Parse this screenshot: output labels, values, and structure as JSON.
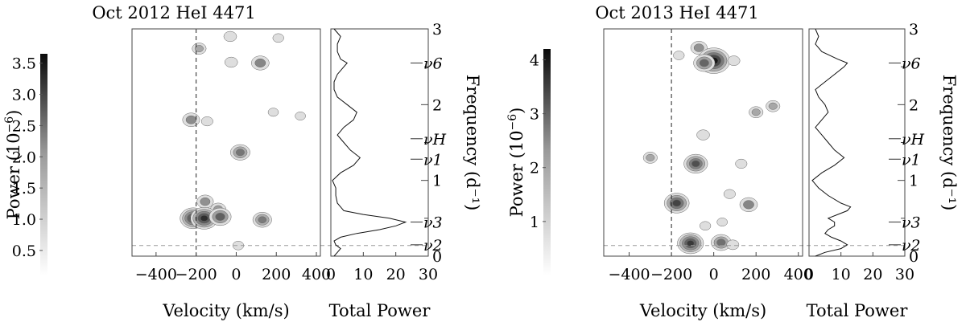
{
  "chart_data": [
    {
      "type": "heatmap",
      "title": "Oct 2012 HeI 4471",
      "xlabel": "Velocity (km/s)",
      "xlim": [
        -520,
        420
      ],
      "xticks": [
        -400,
        -200,
        0,
        200,
        400
      ],
      "ylabel_right": "Frequency (d⁻¹)",
      "ylim": [
        0,
        3
      ],
      "yticks": [
        0,
        1,
        2,
        3
      ],
      "dashed_velocity": -200,
      "dashed_frequency": 0.14,
      "colorbar": {
        "label_main": "Power (10",
        "label_exp": "−6",
        "label_close": ")",
        "range": [
          0.1,
          3.65
        ],
        "ticks": [
          "0.5",
          "1.0",
          "1.5",
          "2.0",
          "2.5",
          "3.0",
          "3.5"
        ]
      },
      "markers": [
        {
          "name": "ν6",
          "freq": 2.55
        },
        {
          "name": "νH",
          "freq": 1.55
        },
        {
          "name": "ν1",
          "freq": 1.28
        },
        {
          "name": "ν3",
          "freq": 0.45
        },
        {
          "name": "ν2",
          "freq": 0.15
        }
      ],
      "blobs": [
        {
          "v": -30,
          "f": 2.9,
          "p": 0.8
        },
        {
          "v": 210,
          "f": 2.88,
          "p": 0.5
        },
        {
          "v": -185,
          "f": 2.74,
          "p": 1.0
        },
        {
          "v": -25,
          "f": 2.56,
          "p": 0.8
        },
        {
          "v": 120,
          "f": 2.55,
          "p": 1.6
        },
        {
          "v": 185,
          "f": 1.9,
          "p": 0.4
        },
        {
          "v": 320,
          "f": 1.85,
          "p": 0.4
        },
        {
          "v": -225,
          "f": 1.8,
          "p": 1.5
        },
        {
          "v": -145,
          "f": 1.78,
          "p": 0.6
        },
        {
          "v": 20,
          "f": 1.37,
          "p": 1.9
        },
        {
          "v": -155,
          "f": 0.72,
          "p": 1.4
        },
        {
          "v": -90,
          "f": 0.62,
          "p": 1.2
        },
        {
          "v": -215,
          "f": 0.5,
          "p": 3.0
        },
        {
          "v": -160,
          "f": 0.5,
          "p": 3.2
        },
        {
          "v": -80,
          "f": 0.52,
          "p": 2.3
        },
        {
          "v": 130,
          "f": 0.48,
          "p": 1.8
        },
        {
          "v": 10,
          "f": 0.14,
          "p": 0.5
        }
      ],
      "total_power": {
        "xlabel": "Total Power",
        "xlim": [
          0,
          30
        ],
        "xticks": [
          0,
          10,
          20,
          30
        ],
        "freq": [
          0,
          0.05,
          0.1,
          0.15,
          0.2,
          0.25,
          0.3,
          0.35,
          0.4,
          0.45,
          0.5,
          0.55,
          0.6,
          0.7,
          0.8,
          0.9,
          1.0,
          1.1,
          1.2,
          1.3,
          1.4,
          1.5,
          1.6,
          1.7,
          1.8,
          1.9,
          2.0,
          2.1,
          2.2,
          2.3,
          2.4,
          2.5,
          2.55,
          2.6,
          2.7,
          2.8,
          2.9,
          3.0
        ],
        "power": [
          1,
          2,
          3,
          1.5,
          1,
          3,
          8,
          15,
          20,
          23,
          18,
          10,
          4,
          2,
          1.5,
          1.5,
          0.5,
          3,
          7,
          9,
          6,
          4,
          2,
          4,
          7,
          8,
          5,
          2,
          1,
          1,
          2,
          4,
          5,
          3,
          2,
          2,
          3,
          1
        ]
      }
    },
    {
      "type": "heatmap",
      "title": "Oct 2013 HeI 4471",
      "xlabel": "Velocity (km/s)",
      "xlim": [
        -520,
        420
      ],
      "xticks": [
        -400,
        -200,
        0,
        200,
        400
      ],
      "ylabel_right": "Frequency (d⁻¹)",
      "ylim": [
        0,
        3
      ],
      "yticks": [
        0,
        1,
        2,
        3
      ],
      "dashed_velocity": -200,
      "dashed_frequency": 0.14,
      "colorbar": {
        "label_main": "Power (10",
        "label_exp": "−6",
        "label_close": ")",
        "range": [
          0,
          4.2
        ],
        "ticks": [
          "1",
          "2",
          "3",
          "4"
        ]
      },
      "markers": [
        {
          "name": "ν6",
          "freq": 2.55
        },
        {
          "name": "νH",
          "freq": 1.55
        },
        {
          "name": "ν1",
          "freq": 1.28
        },
        {
          "name": "ν3",
          "freq": 0.45
        },
        {
          "name": "ν2",
          "freq": 0.15
        }
      ],
      "blobs": [
        {
          "v": -70,
          "f": 2.75,
          "p": 1.4
        },
        {
          "v": -165,
          "f": 2.65,
          "p": 0.5
        },
        {
          "v": 0,
          "f": 2.58,
          "p": 4.0
        },
        {
          "v": -45,
          "f": 2.55,
          "p": 2.2
        },
        {
          "v": 95,
          "f": 2.58,
          "p": 0.7
        },
        {
          "v": 280,
          "f": 1.98,
          "p": 1.0
        },
        {
          "v": 200,
          "f": 1.9,
          "p": 1.0
        },
        {
          "v": -50,
          "f": 1.6,
          "p": 0.8
        },
        {
          "v": -300,
          "f": 1.3,
          "p": 1.0
        },
        {
          "v": -85,
          "f": 1.22,
          "p": 2.6
        },
        {
          "v": 130,
          "f": 1.22,
          "p": 0.6
        },
        {
          "v": 75,
          "f": 0.82,
          "p": 0.6
        },
        {
          "v": -175,
          "f": 0.7,
          "p": 2.8
        },
        {
          "v": 165,
          "f": 0.68,
          "p": 1.6
        },
        {
          "v": -40,
          "f": 0.4,
          "p": 0.5
        },
        {
          "v": 40,
          "f": 0.45,
          "p": 0.4
        },
        {
          "v": -110,
          "f": 0.17,
          "p": 3.0
        },
        {
          "v": 35,
          "f": 0.18,
          "p": 2.0
        },
        {
          "v": 90,
          "f": 0.15,
          "p": 0.7
        }
      ],
      "total_power": {
        "xlabel": "Total Power",
        "xlim": [
          0,
          30
        ],
        "xticks": [
          0,
          10,
          20,
          30
        ],
        "freq": [
          0,
          0.05,
          0.1,
          0.15,
          0.2,
          0.25,
          0.3,
          0.35,
          0.4,
          0.45,
          0.5,
          0.55,
          0.6,
          0.65,
          0.7,
          0.8,
          0.9,
          1.0,
          1.1,
          1.2,
          1.3,
          1.4,
          1.5,
          1.6,
          1.7,
          1.8,
          1.9,
          2.0,
          2.1,
          2.2,
          2.3,
          2.4,
          2.5,
          2.55,
          2.6,
          2.7,
          2.8,
          2.9,
          3.0
        ],
        "power": [
          2,
          5,
          10,
          12,
          10,
          7,
          5,
          6,
          8,
          8,
          6,
          9,
          12,
          13,
          10,
          6,
          3,
          1,
          4,
          8,
          11,
          8,
          6,
          4,
          2,
          4,
          6,
          5,
          3,
          2,
          5,
          8,
          11,
          12,
          9,
          4,
          2,
          3,
          2
        ]
      }
    }
  ]
}
